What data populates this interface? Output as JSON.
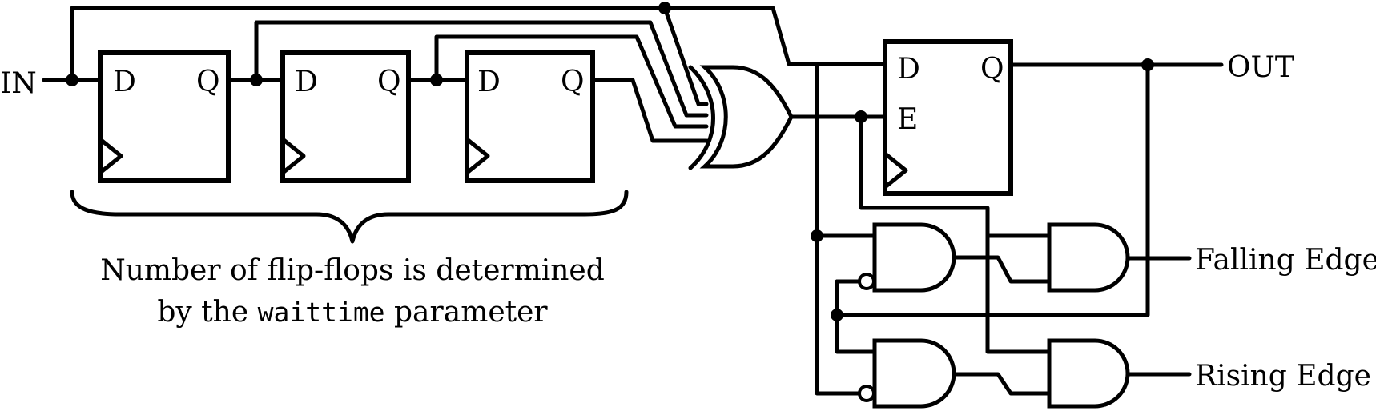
{
  "signals": {
    "input": "IN",
    "output": "OUT",
    "falling": "Falling Edge",
    "rising": "Rising Edge"
  },
  "flipflops": [
    {
      "d": "D",
      "q": "Q"
    },
    {
      "d": "D",
      "q": "Q"
    },
    {
      "d": "D",
      "q": "Q"
    }
  ],
  "latch": {
    "d": "D",
    "e": "E",
    "q": "Q"
  },
  "caption": {
    "line1": "Number of flip-flops is determined",
    "line2_prefix": "by the",
    "line2_code": "waittime",
    "line2_suffix": "parameter"
  }
}
